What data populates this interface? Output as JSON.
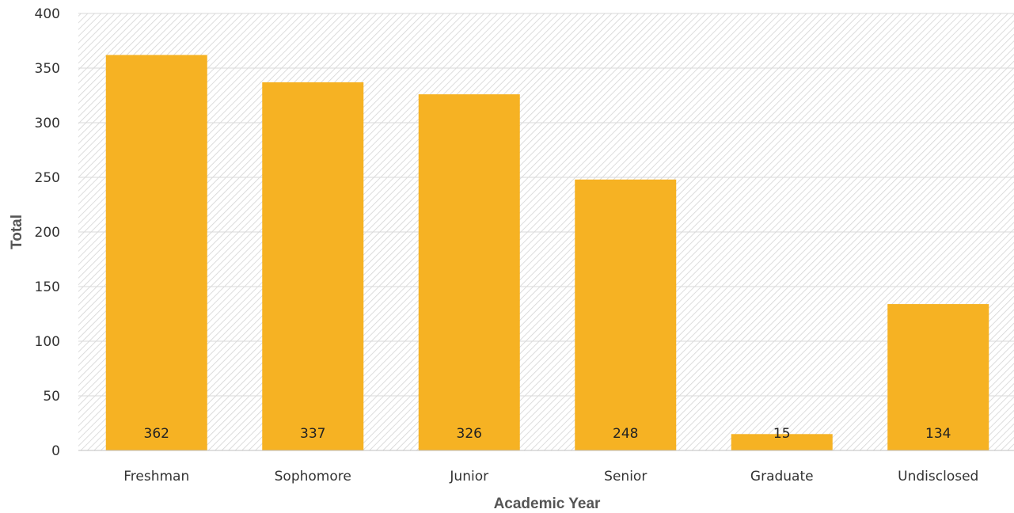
{
  "chart_data": {
    "type": "bar",
    "title": "",
    "xlabel": "Academic Year",
    "ylabel": "Total",
    "categories": [
      "Freshman",
      "Sophomore",
      "Junior",
      "Senior",
      "Graduate",
      "Undisclosed"
    ],
    "series": [
      {
        "values": [
          362,
          337,
          326,
          248,
          15,
          134
        ],
        "data_labels": [
          "362",
          "337",
          "326",
          "248",
          "15",
          "134"
        ]
      }
    ],
    "ylim": [
      0,
      400
    ],
    "yticks": [
      0,
      50,
      100,
      150,
      200,
      250,
      300,
      350,
      400
    ],
    "ytick_labels": [
      "0",
      "50",
      "100",
      "150",
      "200",
      "250",
      "300",
      "350",
      "400"
    ],
    "grid": true,
    "legend": "none",
    "colors": {
      "bar": "#F6B223",
      "grid": "#D9D9D9",
      "hatch": "#D6D6D6",
      "plot_bg": "#FFFFFF"
    }
  }
}
